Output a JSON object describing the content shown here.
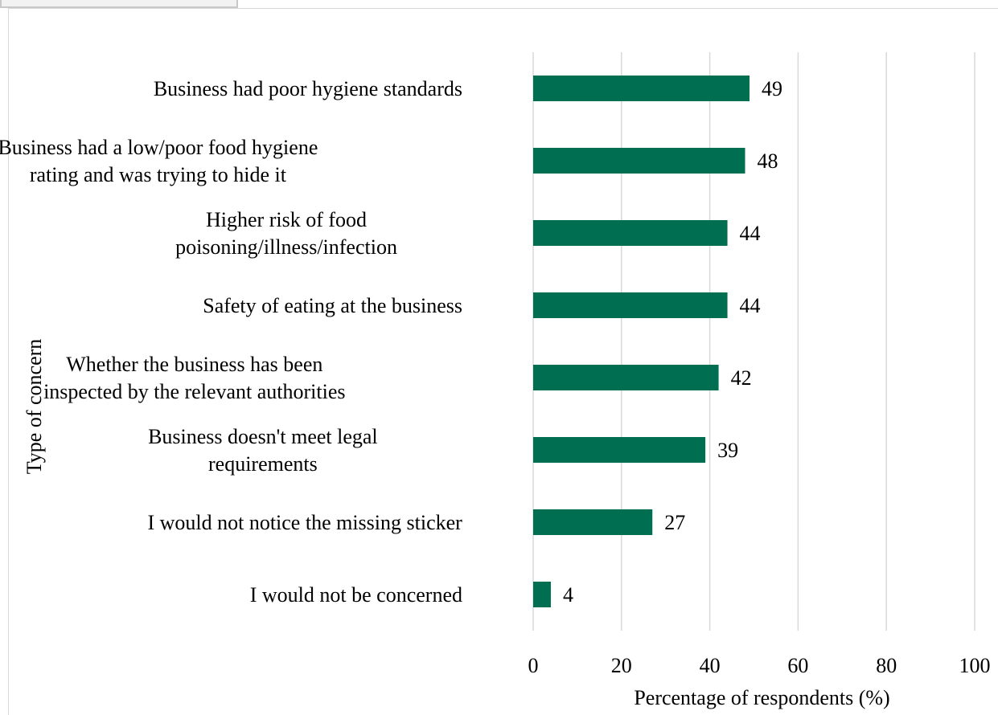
{
  "chart_data": {
    "type": "bar",
    "orientation": "horizontal",
    "categories": [
      [
        "Business had poor hygiene standards"
      ],
      [
        "Business had a low/poor food hygiene",
        "rating and was trying to hide it"
      ],
      [
        "Higher risk of food",
        "poisoning/illness/infection"
      ],
      [
        "Safety of eating at the business"
      ],
      [
        "Whether the business has been",
        "inspected by the relevant authorities"
      ],
      [
        "Business doesn't meet legal",
        "requirements"
      ],
      [
        "I would not notice the missing sticker"
      ],
      [
        "I would not be concerned"
      ]
    ],
    "values": [
      49,
      48,
      44,
      44,
      42,
      39,
      27,
      4
    ],
    "xlabel": "Percentage of respondents (%)",
    "ylabel": "Type of concern",
    "xlim": [
      0,
      100
    ],
    "xticks": [
      0,
      20,
      40,
      60,
      80,
      100
    ],
    "grid": "vertical",
    "bar_color": "#006e51",
    "grid_color": "#d9d9d9"
  }
}
